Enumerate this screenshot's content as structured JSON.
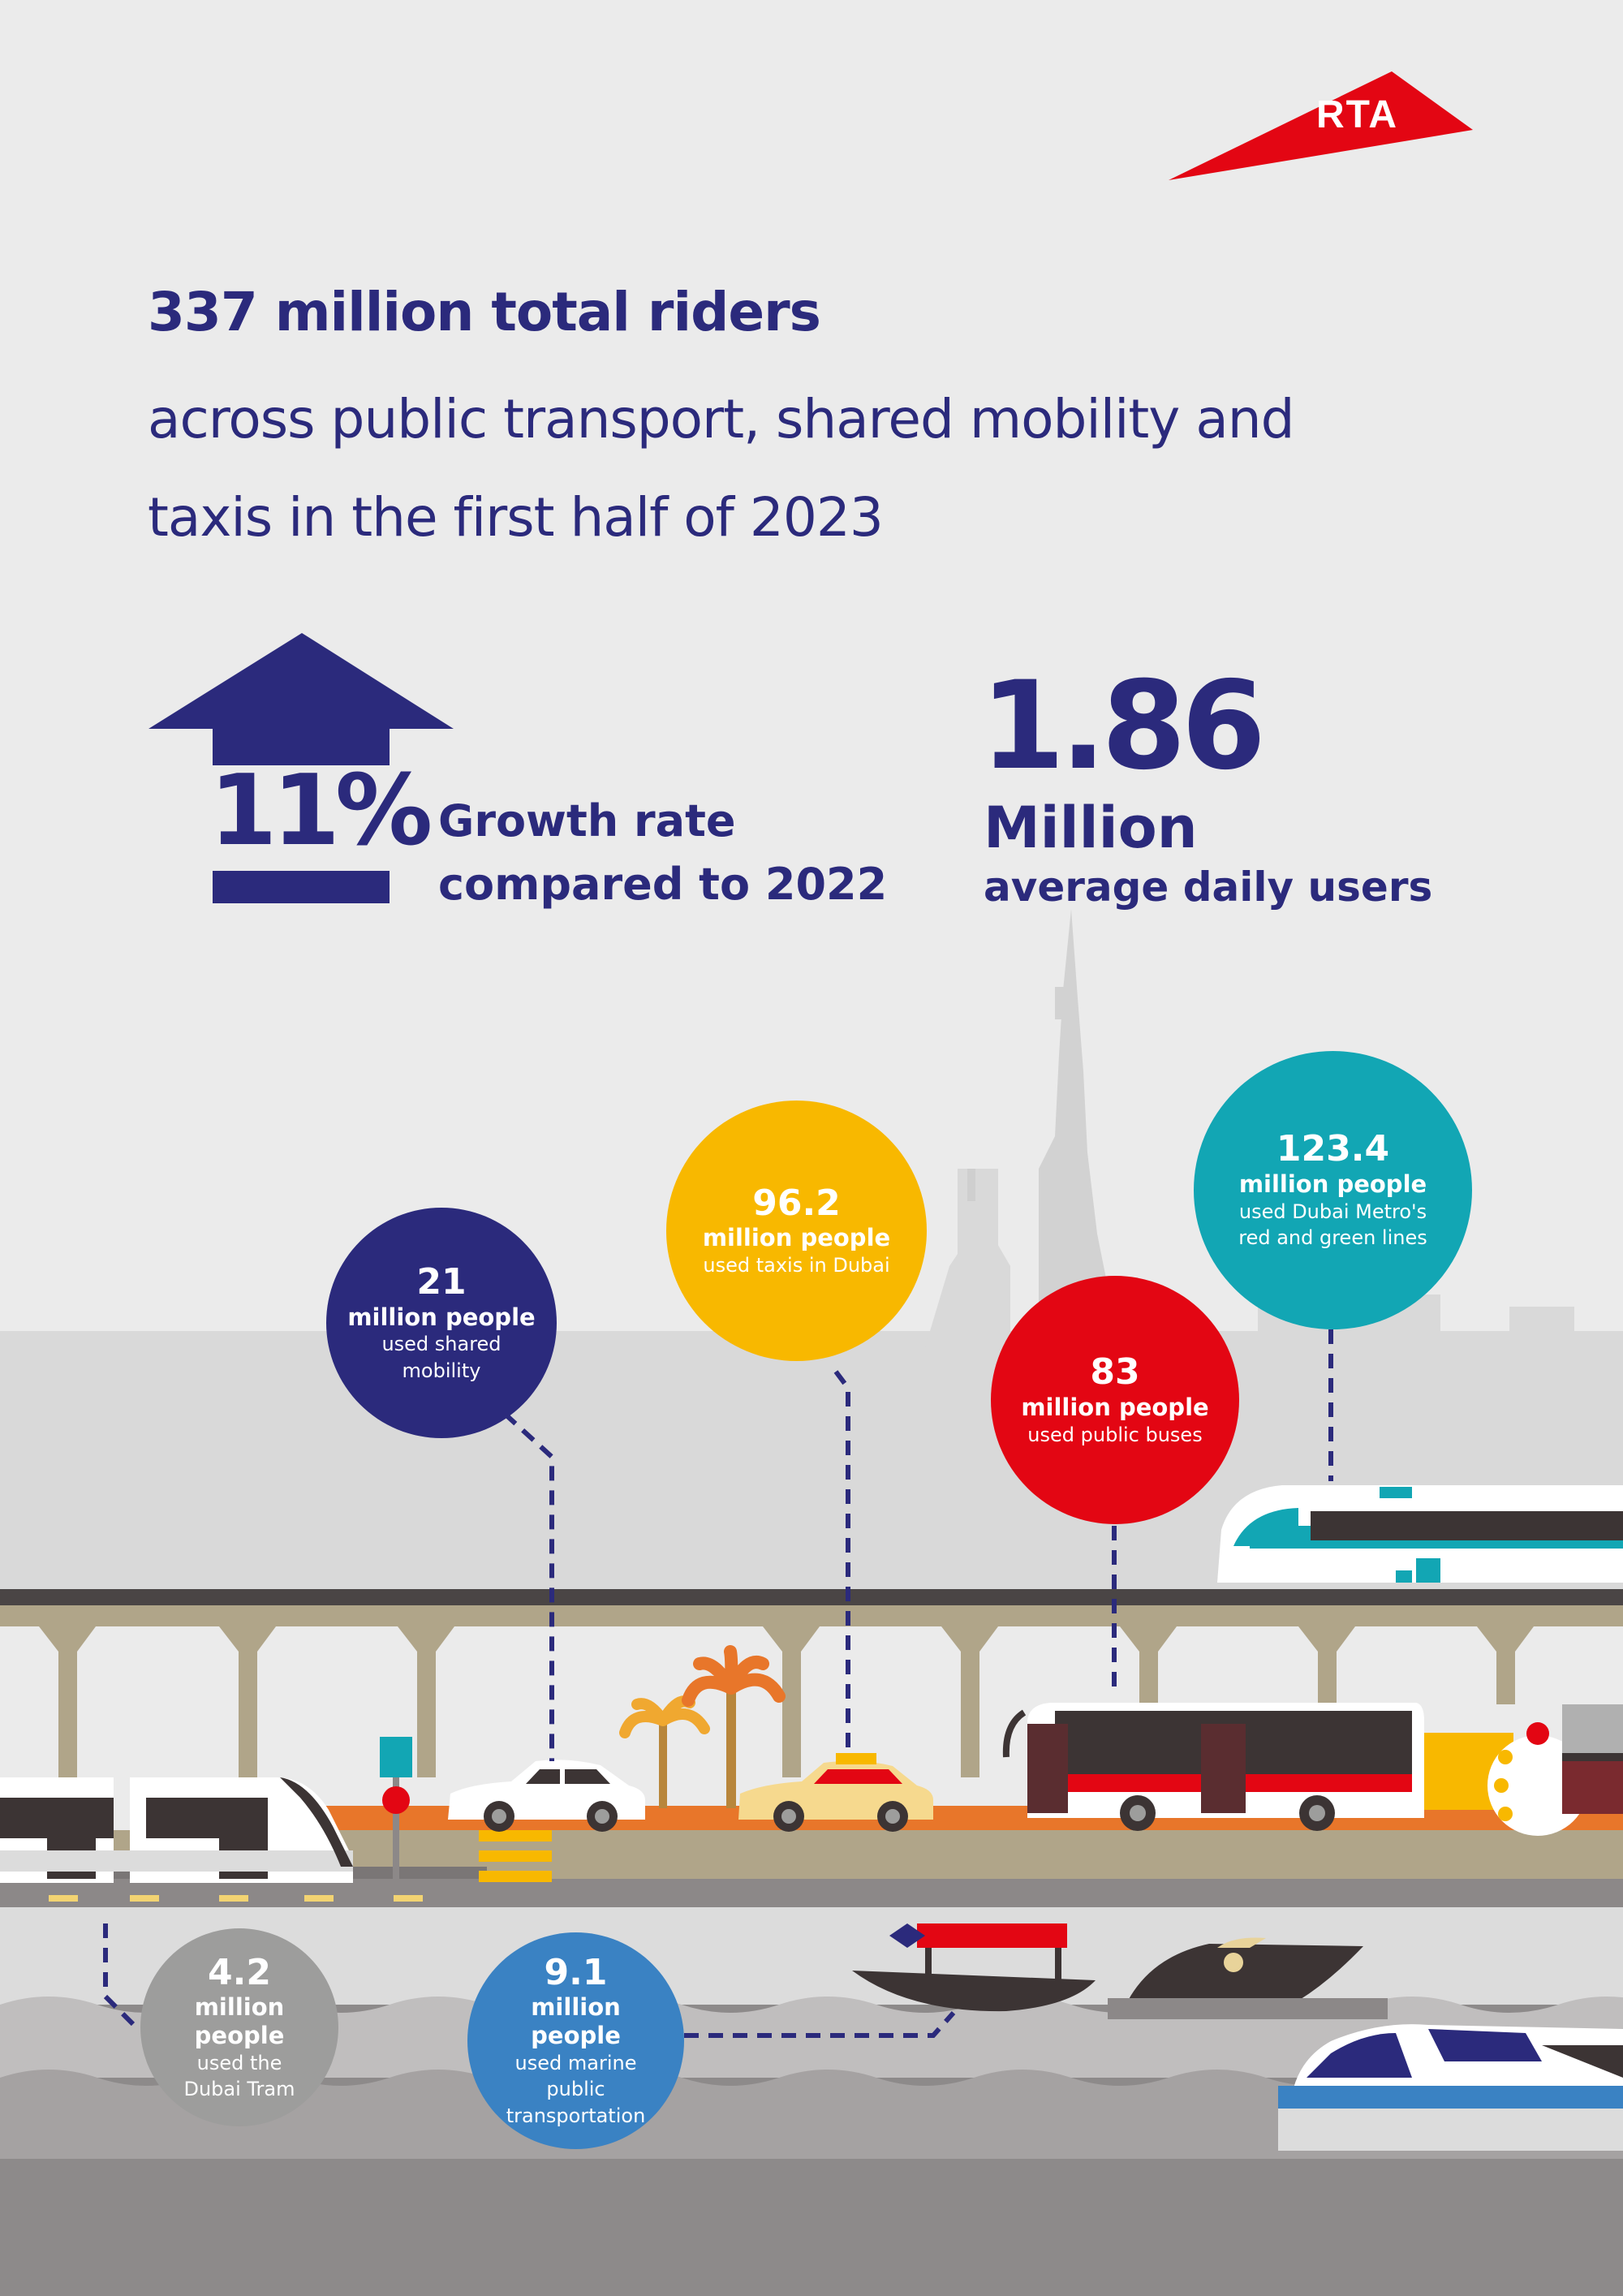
{
  "brand": {
    "logo_text": "RTA"
  },
  "colors": {
    "background": "#ebebeb",
    "navy": "#2b2a7c",
    "red": "#e30613",
    "yellow": "#f8b800",
    "teal": "#12a6b4",
    "blue": "#3a82c3",
    "gray": "#9d9d9c"
  },
  "headline": {
    "title": "337 million total riders",
    "subtitle_line1": "across public transport, shared mobility and",
    "subtitle_line2": "taxis in the first half of 2023"
  },
  "growth": {
    "value": "11%",
    "label_line1": "Growth rate",
    "label_line2": "compared to 2022",
    "icon": "up-arrow-icon"
  },
  "daily_users": {
    "value": "1.86",
    "unit": "Million",
    "label": "average daily users"
  },
  "stats": {
    "metro": {
      "value": "123.4",
      "unit": "million people",
      "desc_line1": "used Dubai Metro's",
      "desc_line2": "red and green lines"
    },
    "taxis": {
      "value": "96.2",
      "unit": "million people",
      "desc_line1": "used taxis in Dubai"
    },
    "buses": {
      "value": "83",
      "unit": "million people",
      "desc_line1": "used public buses"
    },
    "shared": {
      "value": "21",
      "unit": "million people",
      "desc_line1": "used shared",
      "desc_line2": "mobility"
    },
    "marine": {
      "value": "9.1",
      "unit": "million people",
      "desc_line1": "used marine public",
      "desc_line2": "transportation"
    },
    "tram": {
      "value": "4.2",
      "unit": "million people",
      "desc_line1": "used the",
      "desc_line2": "Dubai Tram"
    }
  }
}
